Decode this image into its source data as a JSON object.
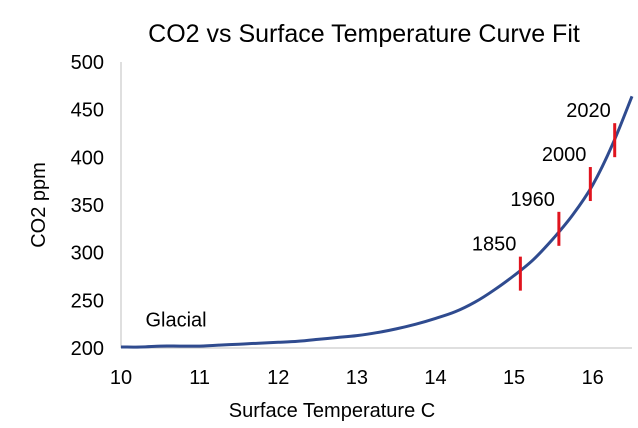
{
  "chart_data": {
    "type": "line",
    "title": "CO2 vs Surface Temperature Curve Fit",
    "xlabel": "Surface Temperature C",
    "ylabel": "CO2 ppm",
    "xlim": [
      10,
      16.5
    ],
    "ylim": [
      200,
      500
    ],
    "x_ticks": [
      "10",
      "11",
      "12",
      "13",
      "14",
      "15",
      "16"
    ],
    "y_ticks": [
      "200",
      "250",
      "300",
      "350",
      "400",
      "450",
      "500"
    ],
    "grid": false,
    "legend": "none",
    "line_color": "#2f4b8f",
    "marker_color": "#e0141e",
    "series": [
      {
        "x": [
          10,
          10.25,
          10.5,
          10.75,
          11,
          11.25,
          11.5,
          11.75,
          12,
          12.25,
          12.5,
          12.75,
          13,
          13.25,
          13.5,
          13.75,
          14,
          14.25,
          14.5,
          14.75,
          15,
          15.25,
          15.5,
          15.75,
          16,
          16.25,
          16.5
        ],
        "y": [
          201,
          201,
          202,
          202,
          202,
          203,
          204,
          205,
          206,
          207,
          209,
          211,
          213,
          216,
          220,
          225,
          231,
          238,
          248,
          261,
          276,
          293,
          315,
          340,
          371,
          413,
          464
        ]
      }
    ],
    "annotations": [
      {
        "text": "Glacial",
        "x": 10.7,
        "y": 230
      },
      {
        "text": "1850",
        "x": 15.08,
        "y": 278
      },
      {
        "text": "1960",
        "x": 15.57,
        "y": 325
      },
      {
        "text": "2000",
        "x": 15.97,
        "y": 372
      },
      {
        "text": "2020",
        "x": 16.28,
        "y": 418
      }
    ]
  }
}
